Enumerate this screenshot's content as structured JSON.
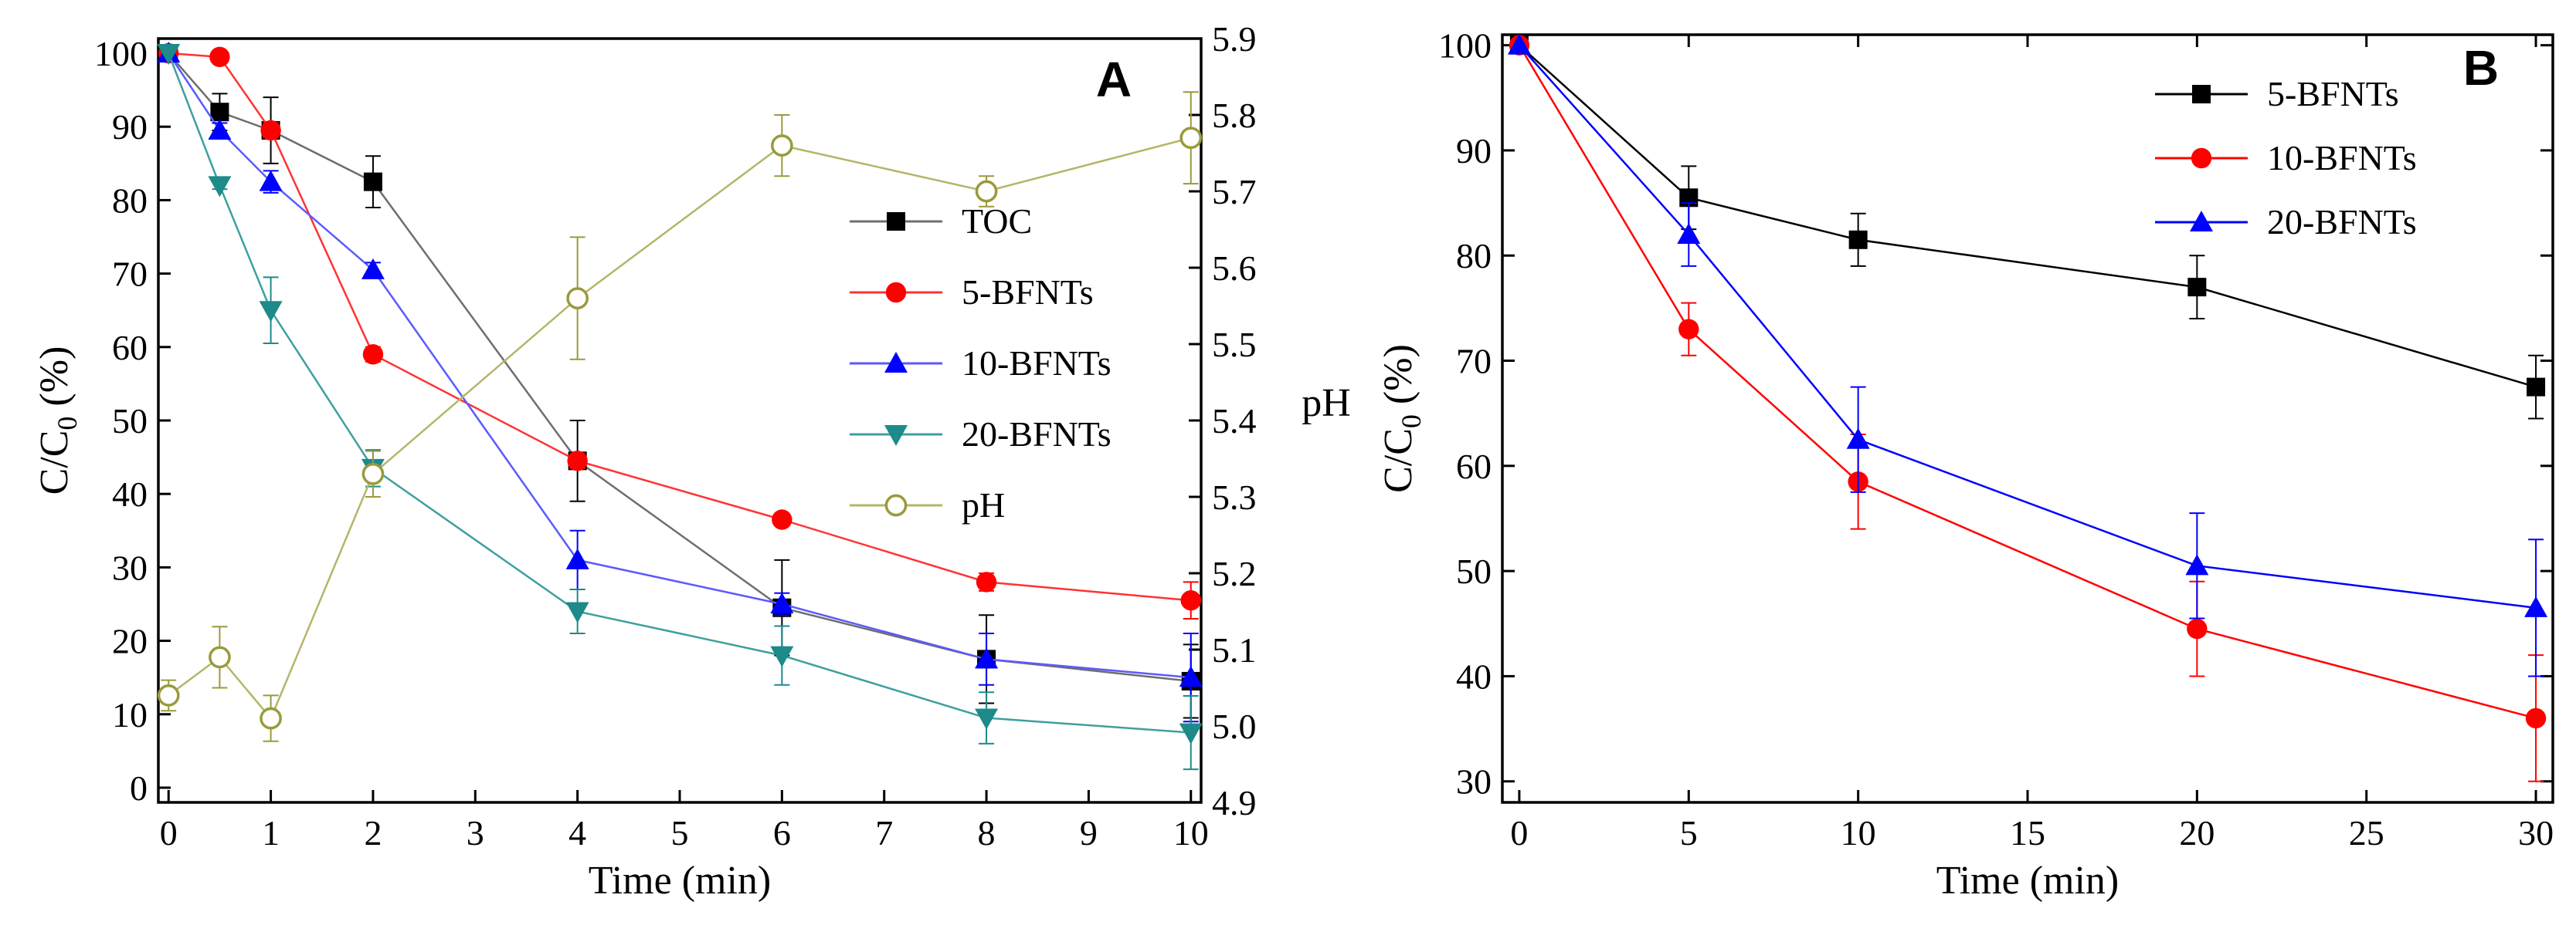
{
  "chart_data": [
    {
      "id": "A",
      "type": "line",
      "panel_label": "A",
      "title": "",
      "xlabel": "Time (min)",
      "ylabel_main": "C/C",
      "ylabel_sub": "0",
      "ylabel_tail": " (%)",
      "y2label": "pH",
      "xlim": [
        -0.1,
        10.1
      ],
      "ylim": [
        -2,
        102
      ],
      "y2lim": [
        4.9,
        5.9
      ],
      "xticks": [
        0,
        1,
        2,
        3,
        4,
        5,
        6,
        7,
        8,
        9,
        10
      ],
      "yticks": [
        0,
        10,
        20,
        30,
        40,
        50,
        60,
        70,
        80,
        90,
        100
      ],
      "y2ticks": [
        "4.9",
        "5.0",
        "5.1",
        "5.2",
        "5.3",
        "5.4",
        "5.5",
        "5.6",
        "5.7",
        "5.8",
        "5.9"
      ],
      "legend_position": "center-right",
      "series": [
        {
          "name": "TOC",
          "axis": "left",
          "color": "#000000",
          "line_color": "#6e6e6e",
          "marker": "square",
          "x": [
            0,
            0.5,
            1,
            2,
            4,
            6,
            8,
            10
          ],
          "y": [
            100,
            92,
            89.5,
            82.5,
            44.5,
            24.5,
            17.5,
            14.5
          ],
          "err": [
            0,
            2.5,
            4.5,
            3.5,
            5.5,
            6.5,
            6,
            5
          ]
        },
        {
          "name": "5-BFNTs",
          "axis": "left",
          "color": "#ff0000",
          "line_color": "#ff3333",
          "marker": "circle",
          "x": [
            0,
            0.5,
            1,
            2,
            4,
            6,
            8,
            10
          ],
          "y": [
            100,
            99.5,
            89.5,
            59,
            44.5,
            36.5,
            28,
            25.5
          ],
          "err": [
            0,
            0.5,
            1,
            1,
            1,
            0.8,
            1.2,
            2.5
          ]
        },
        {
          "name": "10-BFNTs",
          "axis": "left",
          "color": "#0000ff",
          "line_color": "#5a5aff",
          "marker": "triangle-up",
          "x": [
            0,
            0.5,
            1,
            2,
            4,
            6,
            8,
            10
          ],
          "y": [
            100,
            89.5,
            82.5,
            70.5,
            31,
            25,
            17.5,
            15
          ],
          "err": [
            0,
            1,
            1.5,
            1,
            4,
            1.5,
            3.5,
            6
          ]
        },
        {
          "name": "20-BFNTs",
          "axis": "left",
          "color": "#1e8a8a",
          "line_color": "#3f9f9f",
          "marker": "triangle-down",
          "x": [
            0,
            0.5,
            1,
            2,
            4,
            6,
            8,
            10
          ],
          "y": [
            100,
            82,
            65,
            43.5,
            24,
            18,
            9.5,
            7.5
          ],
          "err": [
            0,
            0.5,
            4.5,
            2.5,
            3,
            4,
            3.5,
            5
          ]
        },
        {
          "name": "pH",
          "axis": "right",
          "color": "#9a9a3c",
          "line_color": "#b5b56a",
          "marker": "circle-open",
          "x": [
            0,
            0.5,
            1,
            2,
            4,
            6,
            8,
            10
          ],
          "y": [
            5.04,
            5.09,
            5.01,
            5.33,
            5.56,
            5.76,
            5.7,
            5.77
          ],
          "err": [
            0.02,
            0.04,
            0.03,
            0.03,
            0.08,
            0.04,
            0.02,
            0.06
          ]
        }
      ]
    },
    {
      "id": "B",
      "type": "line",
      "panel_label": "B",
      "title": "",
      "xlabel": "Time (min)",
      "ylabel_main": "C/C",
      "ylabel_sub": "0",
      "ylabel_tail": " (%)",
      "xlim": [
        -0.5,
        30.5
      ],
      "ylim": [
        28,
        101
      ],
      "xticks": [
        0,
        5,
        10,
        15,
        20,
        25,
        30
      ],
      "yticks": [
        30,
        40,
        50,
        60,
        70,
        80,
        90,
        100
      ],
      "legend_position": "top-right",
      "series": [
        {
          "name": "5-BFNTs",
          "color": "#000000",
          "line_color": "#000000",
          "marker": "square",
          "x": [
            0,
            5,
            10,
            20,
            30
          ],
          "y": [
            100,
            85.5,
            81.5,
            77,
            67.5
          ],
          "err": [
            0,
            3,
            2.5,
            3,
            3
          ]
        },
        {
          "name": "10-BFNTs",
          "color": "#ff0000",
          "line_color": "#ff0000",
          "marker": "circle",
          "x": [
            0,
            5,
            10,
            20,
            30
          ],
          "y": [
            100,
            73,
            58.5,
            44.5,
            36
          ],
          "err": [
            0,
            2.5,
            4.5,
            4.5,
            6
          ]
        },
        {
          "name": "20-BFNTs",
          "color": "#0000ff",
          "line_color": "#0000ff",
          "marker": "triangle-up",
          "x": [
            0,
            5,
            10,
            20,
            30
          ],
          "y": [
            100,
            82,
            62.5,
            50.5,
            46.5
          ],
          "err": [
            0,
            3,
            5,
            5,
            6.5
          ]
        }
      ]
    }
  ]
}
